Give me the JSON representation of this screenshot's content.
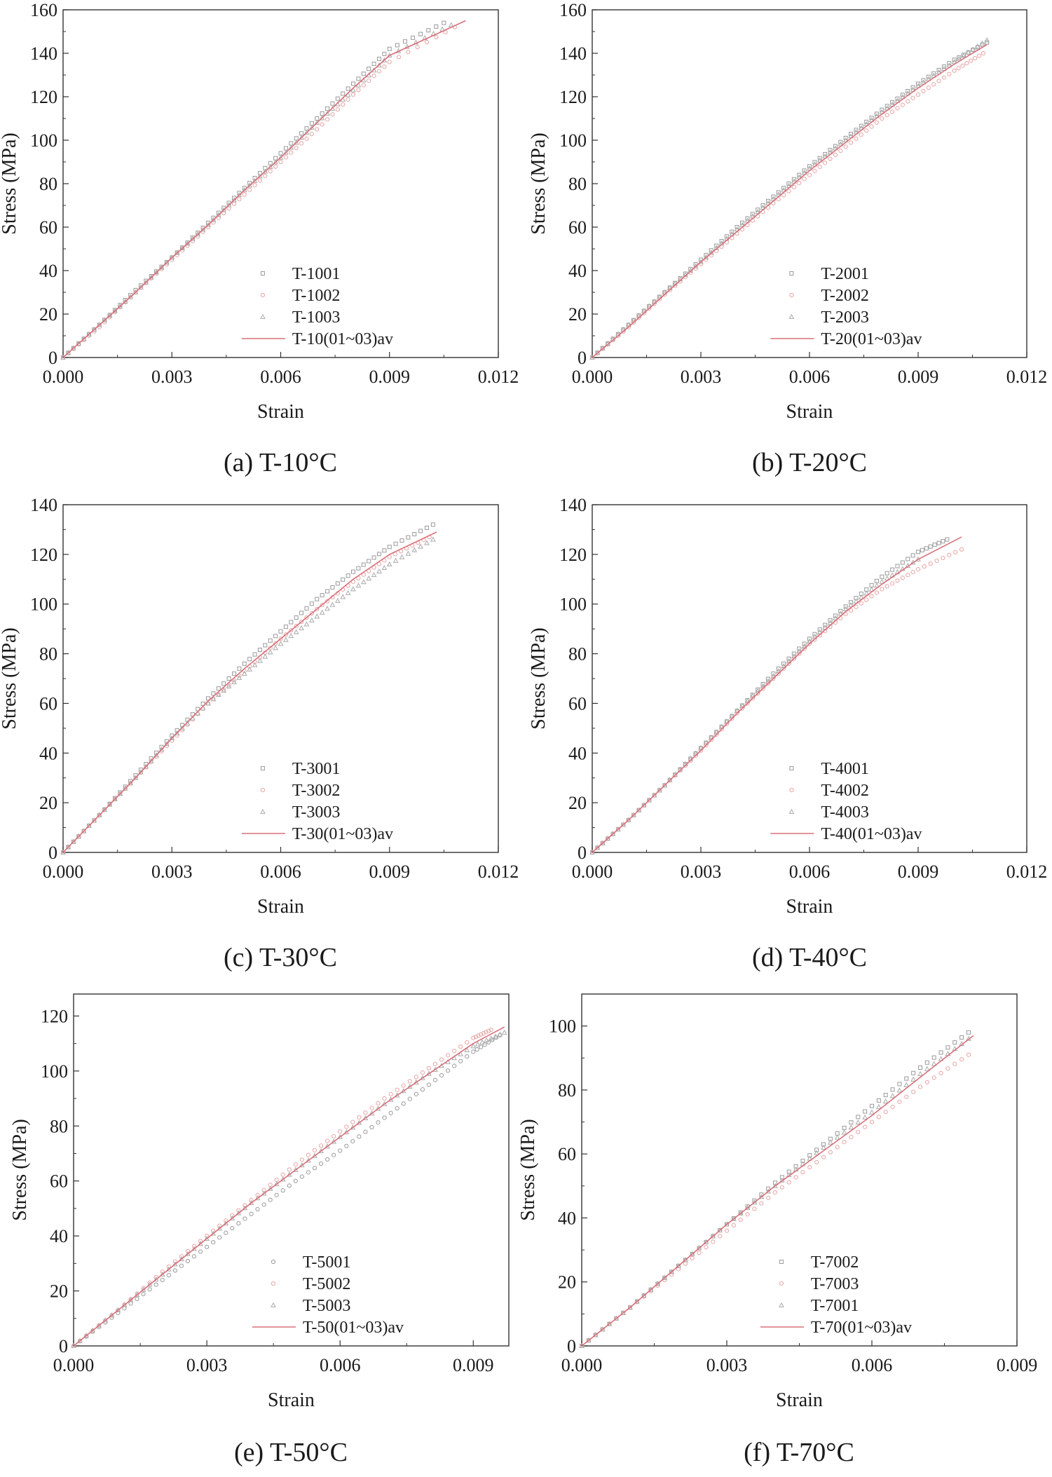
{
  "chart_data": [
    {
      "type": "scatter",
      "caption": "(a) T-10°C",
      "xlabel": "Strain",
      "ylabel": "Stress (MPa)",
      "xlim": [
        0,
        0.012
      ],
      "ylim": [
        0,
        160
      ],
      "xticks": [
        "0.000",
        "0.003",
        "0.006",
        "0.009",
        "0.012"
      ],
      "xtick_values": [
        0,
        0.003,
        0.006,
        0.009,
        0.012
      ],
      "yticks": [
        "0",
        "20",
        "40",
        "60",
        "80",
        "100",
        "120",
        "140",
        "160"
      ],
      "ytick_values": [
        0,
        20,
        40,
        60,
        80,
        100,
        120,
        140,
        160
      ],
      "grid": false,
      "legend_position": "bottom-right",
      "series": [
        {
          "name": "T-1001",
          "style": "markers",
          "marker": "square",
          "color": "#9a9a9a",
          "x": [
            0,
            0.001,
            0.002,
            0.003,
            0.004,
            0.005,
            0.006,
            0.007,
            0.008,
            0.009,
            0.0105
          ],
          "y": [
            0,
            15,
            31,
            46,
            62,
            78,
            94,
            110,
            126,
            142,
            154
          ]
        },
        {
          "name": "T-1002",
          "style": "markers",
          "marker": "circle",
          "color": "#e8a4a4",
          "x": [
            0,
            0.001,
            0.002,
            0.003,
            0.004,
            0.005,
            0.006,
            0.007,
            0.008,
            0.009,
            0.0108
          ],
          "y": [
            0,
            14,
            30,
            45,
            60,
            75,
            90,
            105,
            121,
            136,
            152
          ]
        },
        {
          "name": "T-1003",
          "style": "markers",
          "marker": "triangle",
          "color": "#aaaaaa",
          "x": [
            0,
            0.001,
            0.002,
            0.003,
            0.004,
            0.005,
            0.006,
            0.007,
            0.008,
            0.009,
            0.0107
          ],
          "y": [
            0,
            15,
            30,
            46,
            61,
            77,
            92,
            108,
            123,
            139,
            153
          ]
        },
        {
          "name": "T-10(01~03)av",
          "style": "line",
          "color": "#d9707a",
          "x": [
            0,
            0.001,
            0.002,
            0.003,
            0.004,
            0.005,
            0.006,
            0.007,
            0.008,
            0.009,
            0.0111
          ],
          "y": [
            0,
            15,
            30,
            46,
            61,
            77,
            92,
            108,
            124,
            139,
            155
          ]
        }
      ]
    },
    {
      "type": "scatter",
      "caption": "(b) T-20°C",
      "xlabel": "Strain",
      "ylabel": "Stress (MPa)",
      "xlim": [
        0,
        0.012
      ],
      "ylim": [
        0,
        160
      ],
      "xticks": [
        "0.000",
        "0.003",
        "0.006",
        "0.009",
        "0.012"
      ],
      "xtick_values": [
        0,
        0.003,
        0.006,
        0.009,
        0.012
      ],
      "yticks": [
        "0",
        "20",
        "40",
        "60",
        "80",
        "100",
        "120",
        "140",
        "160"
      ],
      "ytick_values": [
        0,
        20,
        40,
        60,
        80,
        100,
        120,
        140,
        160
      ],
      "grid": false,
      "legend_position": "bottom-right",
      "series": [
        {
          "name": "T-2001",
          "style": "markers",
          "marker": "square",
          "color": "#9a9a9a",
          "x": [
            0,
            0.001,
            0.002,
            0.003,
            0.004,
            0.005,
            0.006,
            0.007,
            0.008,
            0.009,
            0.01,
            0.0109
          ],
          "y": [
            0,
            15,
            30,
            45,
            60,
            74,
            88,
            101,
            114,
            126,
            137,
            145
          ]
        },
        {
          "name": "T-2002",
          "style": "markers",
          "marker": "circle",
          "color": "#e8a4a4",
          "x": [
            0,
            0.001,
            0.002,
            0.003,
            0.004,
            0.005,
            0.006,
            0.007,
            0.008,
            0.009,
            0.01,
            0.0108
          ],
          "y": [
            0,
            14,
            29,
            43,
            57,
            71,
            84,
            97,
            110,
            121,
            132,
            140
          ]
        },
        {
          "name": "T-2003",
          "style": "markers",
          "marker": "triangle",
          "color": "#aaaaaa",
          "x": [
            0,
            0.001,
            0.002,
            0.003,
            0.004,
            0.005,
            0.006,
            0.007,
            0.008,
            0.009,
            0.01,
            0.0109
          ],
          "y": [
            0,
            15,
            30,
            44,
            59,
            73,
            87,
            100,
            113,
            125,
            136,
            146
          ]
        },
        {
          "name": "T-20(01~03)av",
          "style": "line",
          "color": "#d9707a",
          "x": [
            0,
            0.001,
            0.002,
            0.003,
            0.004,
            0.005,
            0.006,
            0.007,
            0.008,
            0.009,
            0.01,
            0.0109
          ],
          "y": [
            0,
            14,
            29,
            44,
            58,
            72,
            86,
            99,
            112,
            124,
            135,
            144
          ]
        }
      ]
    },
    {
      "type": "scatter",
      "caption": "(c) T-30°C",
      "xlabel": "Strain",
      "ylabel": "Stress (MPa)",
      "xlim": [
        0,
        0.012
      ],
      "ylim": [
        0,
        140
      ],
      "xticks": [
        "0.000",
        "0.003",
        "0.006",
        "0.009",
        "0.012"
      ],
      "xtick_values": [
        0,
        0.003,
        0.006,
        0.009,
        0.012
      ],
      "yticks": [
        "0",
        "20",
        "40",
        "60",
        "80",
        "100",
        "120",
        "140"
      ],
      "ytick_values": [
        0,
        20,
        40,
        60,
        80,
        100,
        120,
        140
      ],
      "grid": false,
      "legend_position": "bottom-right",
      "series": [
        {
          "name": "T-3001",
          "style": "markers",
          "marker": "square",
          "color": "#9a9a9a",
          "x": [
            0,
            0.001,
            0.002,
            0.003,
            0.004,
            0.005,
            0.006,
            0.007,
            0.008,
            0.009,
            0.0102
          ],
          "y": [
            0,
            15,
            31,
            47,
            62,
            76,
            89,
            102,
            113,
            123,
            132
          ]
        },
        {
          "name": "T-3002",
          "style": "markers",
          "marker": "circle",
          "color": "#e8a4a4",
          "x": [
            0,
            0.001,
            0.002,
            0.003,
            0.004,
            0.005,
            0.006,
            0.007,
            0.008,
            0.009,
            0.0101
          ],
          "y": [
            0,
            15,
            30,
            45,
            60,
            73,
            86,
            98,
            109,
            119,
            127
          ]
        },
        {
          "name": "T-3003",
          "style": "markers",
          "marker": "triangle",
          "color": "#aaaaaa",
          "x": [
            0,
            0.001,
            0.002,
            0.003,
            0.004,
            0.005,
            0.006,
            0.007,
            0.008,
            0.009,
            0.0102
          ],
          "y": [
            0,
            15,
            30,
            46,
            60,
            72,
            84,
            95,
            106,
            116,
            126
          ]
        },
        {
          "name": "T-30(01~03)av",
          "style": "line",
          "color": "#d9707a",
          "x": [
            0,
            0.001,
            0.002,
            0.003,
            0.004,
            0.005,
            0.006,
            0.007,
            0.008,
            0.009,
            0.0103
          ],
          "y": [
            0,
            15,
            30,
            46,
            61,
            74,
            86,
            98,
            110,
            120,
            129
          ]
        }
      ]
    },
    {
      "type": "scatter",
      "caption": "(d) T-40°C",
      "xlabel": "Strain",
      "ylabel": "Stress (MPa)",
      "xlim": [
        0,
        0.012
      ],
      "ylim": [
        0,
        140
      ],
      "xticks": [
        "0.000",
        "0.003",
        "0.006",
        "0.009",
        "0.012"
      ],
      "xtick_values": [
        0,
        0.003,
        0.006,
        0.009,
        0.012
      ],
      "yticks": [
        "0",
        "20",
        "40",
        "60",
        "80",
        "100",
        "120",
        "140"
      ],
      "ytick_values": [
        0,
        20,
        40,
        60,
        80,
        100,
        120,
        140
      ],
      "grid": false,
      "legend_position": "bottom-right",
      "series": [
        {
          "name": "T-4001",
          "style": "markers",
          "marker": "square",
          "color": "#9a9a9a",
          "x": [
            0,
            0.001,
            0.002,
            0.003,
            0.004,
            0.005,
            0.006,
            0.007,
            0.008,
            0.009,
            0.0098
          ],
          "y": [
            0,
            13,
            27,
            42,
            57,
            72,
            86,
            99,
            111,
            121,
            126
          ]
        },
        {
          "name": "T-4002",
          "style": "markers",
          "marker": "circle",
          "color": "#e8a4a4",
          "x": [
            0,
            0.001,
            0.002,
            0.003,
            0.004,
            0.005,
            0.006,
            0.007,
            0.008,
            0.009,
            0.0102
          ],
          "y": [
            0,
            13,
            27,
            41,
            56,
            70,
            84,
            96,
            106,
            114,
            122
          ]
        },
        {
          "name": "T-4003",
          "style": "markers",
          "marker": "triangle",
          "color": "#aaaaaa",
          "x": [
            0,
            0.001,
            0.002,
            0.003,
            0.004,
            0.005,
            0.006,
            0.007,
            0.008,
            0.009
          ],
          "y": [
            0,
            13,
            27,
            42,
            57,
            71,
            85,
            98,
            109,
            118
          ]
        },
        {
          "name": "T-40(01~03)av",
          "style": "line",
          "color": "#d9707a",
          "x": [
            0,
            0.001,
            0.002,
            0.003,
            0.004,
            0.005,
            0.006,
            0.007,
            0.008,
            0.009,
            0.0102
          ],
          "y": [
            0,
            13,
            27,
            41,
            56,
            70,
            84,
            97,
            108,
            118,
            127
          ]
        }
      ]
    },
    {
      "type": "scatter",
      "caption": "(e) T-50°C",
      "xlabel": "Strain",
      "ylabel": "Stress (MPa)",
      "xlim": [
        0,
        0.0098
      ],
      "ylim": [
        0,
        128
      ],
      "xticks": [
        "0.000",
        "0.003",
        "0.006",
        "0.009"
      ],
      "xtick_values": [
        0,
        0.003,
        0.006,
        0.009
      ],
      "yticks": [
        "0",
        "20",
        "40",
        "60",
        "80",
        "100",
        "120"
      ],
      "ytick_values": [
        0,
        20,
        40,
        60,
        80,
        100,
        120
      ],
      "grid": false,
      "legend_position": "bottom-right",
      "series": [
        {
          "name": "T-5001",
          "style": "markers",
          "marker": "circle",
          "color": "#9a9a9a",
          "x": [
            0,
            0.001,
            0.002,
            0.003,
            0.004,
            0.005,
            0.006,
            0.007,
            0.008,
            0.009,
            0.0096
          ],
          "y": [
            0,
            12,
            24,
            36,
            48,
            60,
            71,
            83,
            95,
            107,
            113
          ]
        },
        {
          "name": "T-5002",
          "style": "markers",
          "marker": "circle",
          "color": "#e8a4a4",
          "x": [
            0,
            0.001,
            0.002,
            0.003,
            0.004,
            0.005,
            0.006,
            0.007,
            0.008,
            0.009,
            0.0094
          ],
          "y": [
            0,
            13,
            27,
            40,
            53,
            66,
            78,
            90,
            101,
            112,
            115
          ]
        },
        {
          "name": "T-5003",
          "style": "markers",
          "marker": "triangle",
          "color": "#aaaaaa",
          "x": [
            0,
            0.001,
            0.002,
            0.003,
            0.004,
            0.005,
            0.006,
            0.007,
            0.008,
            0.009,
            0.0097
          ],
          "y": [
            0,
            13,
            26,
            39,
            52,
            64,
            76,
            88,
            99,
            109,
            114
          ]
        },
        {
          "name": "T-50(01~03)av",
          "style": "line",
          "color": "#d9707a",
          "x": [
            0,
            0.001,
            0.002,
            0.003,
            0.004,
            0.005,
            0.006,
            0.007,
            0.008,
            0.009,
            0.0097
          ],
          "y": [
            0,
            13,
            26,
            39,
            52,
            64,
            76,
            88,
            99,
            110,
            116
          ]
        }
      ]
    },
    {
      "type": "scatter",
      "caption": "(f) T-70°C",
      "xlabel": "Strain",
      "ylabel": "Stress (MPa)",
      "xlim": [
        0,
        0.009
      ],
      "ylim": [
        0,
        110
      ],
      "xticks": [
        "0.000",
        "0.003",
        "0.006",
        "0.009"
      ],
      "xtick_values": [
        0,
        0.003,
        0.006,
        0.009
      ],
      "yticks": [
        "0",
        "20",
        "40",
        "60",
        "80",
        "100"
      ],
      "ytick_values": [
        0,
        20,
        40,
        60,
        80,
        100
      ],
      "grid": false,
      "legend_position": "bottom-right",
      "series": [
        {
          "name": "T-7002",
          "style": "markers",
          "marker": "square",
          "color": "#9a9a9a",
          "x": [
            0,
            0.001,
            0.002,
            0.003,
            0.004,
            0.005,
            0.006,
            0.007,
            0.008
          ],
          "y": [
            0,
            12,
            25,
            38,
            51,
            63,
            75,
            87,
            98
          ]
        },
        {
          "name": "T-7003",
          "style": "markers",
          "marker": "circle",
          "color": "#e8a4a4",
          "x": [
            0,
            0.001,
            0.002,
            0.003,
            0.004,
            0.005,
            0.006,
            0.007,
            0.008
          ],
          "y": [
            0,
            12,
            24,
            36,
            48,
            59,
            70,
            81,
            91
          ]
        },
        {
          "name": "T-7001",
          "style": "markers",
          "marker": "triangle",
          "color": "#aaaaaa",
          "x": [
            0,
            0.001,
            0.002,
            0.003,
            0.004,
            0.005,
            0.006,
            0.007,
            0.008
          ],
          "y": [
            0,
            12,
            25,
            38,
            50,
            62,
            73,
            85,
            96
          ]
        },
        {
          "name": "T-70(01~03)av",
          "style": "line",
          "color": "#d9707a",
          "x": [
            0,
            0.001,
            0.002,
            0.003,
            0.004,
            0.005,
            0.006,
            0.007,
            0.0081
          ],
          "y": [
            0,
            12,
            25,
            38,
            50,
            61,
            72,
            84,
            97
          ]
        }
      ]
    }
  ]
}
